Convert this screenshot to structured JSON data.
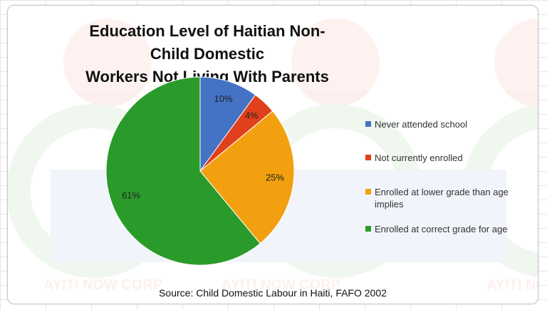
{
  "watermark": {
    "text": "AYITI NOW CORP"
  },
  "source": "Source: Child Domestic Labour in Haiti, FAFO 2002",
  "chart_data": {
    "type": "pie",
    "title": "Education Level of Haitian Non-Child Domestic Workers Not Living With Parents",
    "title_lines": [
      "Education Level of Haitian Non-Child Domestic",
      "Workers Not Living With Parents"
    ],
    "categories": [
      "Never attended school",
      "Not currently enrolled",
      "Enrolled at lower grade than age implies",
      "Enrolled at correct grade for age"
    ],
    "legend_lines": [
      [
        "Never attended school"
      ],
      [
        "Not currently enrolled"
      ],
      [
        "Enrolled at lower grade than age",
        "implies"
      ],
      [
        "Enrolled at correct grade for age"
      ]
    ],
    "values": [
      10,
      4,
      25,
      61
    ],
    "data_labels": [
      "10%",
      "4%",
      "25%",
      "61%"
    ],
    "colors": [
      "#4472c4",
      "#e0401b",
      "#f2a00f",
      "#2a9b2a"
    ],
    "legend_position": "right"
  }
}
